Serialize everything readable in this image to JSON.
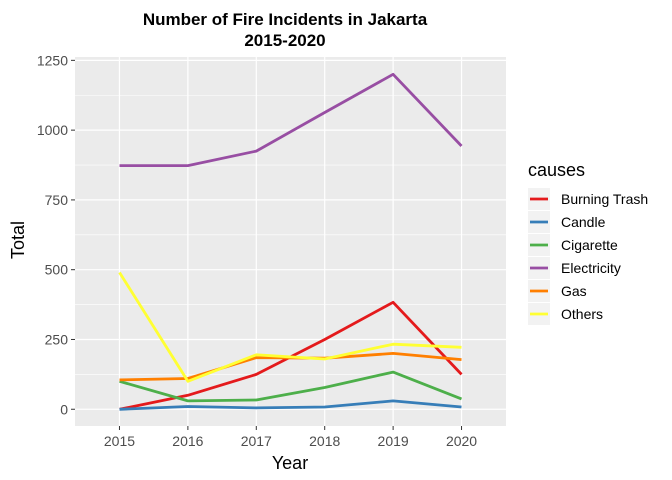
{
  "chart_data": {
    "type": "line",
    "title": "Number of Fire Incidents in Jakarta",
    "subtitle": "2015-2020",
    "xlabel": "Year",
    "ylabel": "Total",
    "x": [
      2015,
      2016,
      2017,
      2018,
      2019,
      2020
    ],
    "x_tick_labels": [
      "2015",
      "2016",
      "2017",
      "2018",
      "2019",
      "2020"
    ],
    "y_ticks": [
      0,
      250,
      500,
      750,
      1000,
      1250
    ],
    "y_tick_labels": [
      "0",
      "250",
      "500",
      "750",
      "1000",
      "1250"
    ],
    "ylim": [
      -60,
      1262
    ],
    "xlim": [
      2014.35,
      2020.65
    ],
    "grid": true,
    "legend_title": "causes",
    "legend_position": "right",
    "series": [
      {
        "name": "Burning Trash",
        "color": "#e41a1c",
        "values": [
          0,
          50,
          125,
          250,
          383,
          125
        ]
      },
      {
        "name": "Candle",
        "color": "#377eb8",
        "values": [
          0,
          10,
          5,
          8,
          30,
          8
        ]
      },
      {
        "name": "Cigarette",
        "color": "#4daf4a",
        "values": [
          100,
          30,
          33,
          78,
          133,
          37
        ]
      },
      {
        "name": "Electricity",
        "color": "#984ea3",
        "values": [
          873,
          873,
          925,
          1063,
          1200,
          943
        ]
      },
      {
        "name": "Gas",
        "color": "#ff7f00",
        "values": [
          105,
          110,
          185,
          183,
          200,
          178
        ]
      },
      {
        "name": "Others",
        "color": "#ffff33",
        "values": [
          490,
          100,
          195,
          180,
          233,
          222
        ]
      }
    ]
  }
}
